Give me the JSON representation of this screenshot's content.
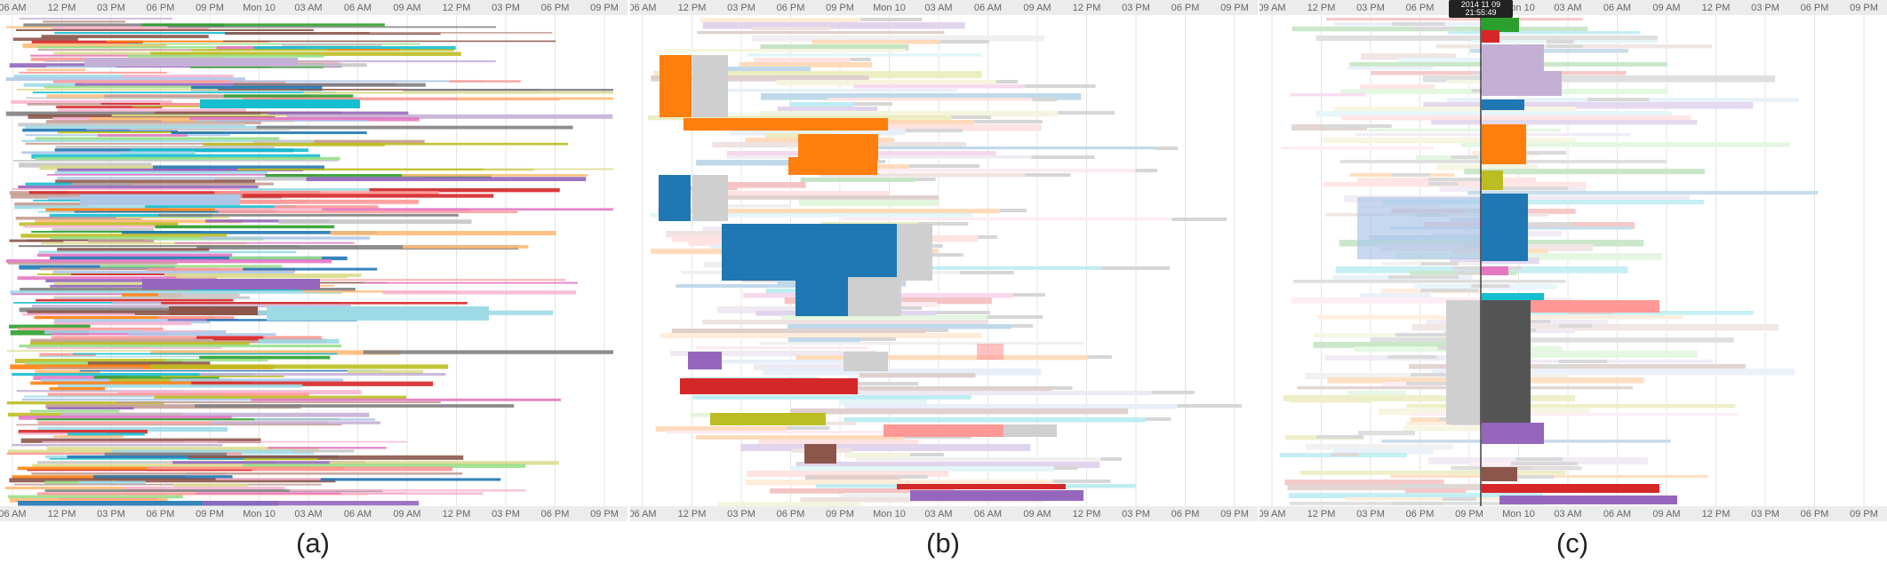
{
  "figure": {
    "captions": [
      "(a)",
      "(b)",
      "(c)"
    ]
  },
  "colors": {
    "palette": [
      "#1f77b4",
      "#ff7f0e",
      "#2ca02c",
      "#d62728",
      "#9467bd",
      "#8c564b",
      "#e377c2",
      "#7f7f7f",
      "#bcbd22",
      "#17becf",
      "#aec7e8",
      "#ffbb78",
      "#98df8a",
      "#ff9896",
      "#c5b0d5",
      "#c49c94",
      "#f7b6d2",
      "#c7c7c7",
      "#dbdb8d",
      "#9edae5"
    ],
    "muted": "#cccccc",
    "dark": "#555555",
    "axis_bg": "#ececec"
  },
  "chart_data": [
    {
      "type": "gantt",
      "panel": "(a)",
      "x_ticks_top": [
        "06 AM",
        "12 PM",
        "03 PM",
        "06 PM",
        "09 PM",
        "Mon 10",
        "03 AM",
        "06 AM",
        "09 AM",
        "12 PM",
        "03 PM",
        "06 PM",
        "09 PM"
      ],
      "x_ticks_bottom": [
        "06 AM",
        "12 PM",
        "03 PM",
        "06 PM",
        "09 PM",
        "Mon 10",
        "03 AM",
        "06 AM",
        "09 AM",
        "12 PM",
        "03 PM",
        "06 PM",
        "09 PM"
      ],
      "grid": true,
      "style": "dense overlapping colored bars, all series fully saturated"
    },
    {
      "type": "gantt",
      "panel": "(b)",
      "x_ticks_top": [
        "06 AM",
        "12 PM",
        "03 PM",
        "06 PM",
        "09 PM",
        "Mon 10",
        "03 AM",
        "06 AM",
        "09 AM",
        "12 PM",
        "03 PM",
        "06 PM",
        "09 PM"
      ],
      "x_ticks_bottom": [
        "06 AM",
        "12 PM",
        "03 PM",
        "06 PM",
        "09 PM",
        "Mon 10",
        "03 AM",
        "06 AM",
        "09 AM",
        "12 PM",
        "03 PM",
        "06 PM",
        "09 PM"
      ],
      "grid": true,
      "style": "overlapping bars with highlighted saturated blocks; others faded"
    },
    {
      "type": "gantt",
      "panel": "(c)",
      "x_ticks_top": [
        "09 AM",
        "12 PM",
        "03 PM",
        "06 PM",
        "09 PM",
        "Mon 10",
        "03 AM",
        "06 AM",
        "09 AM",
        "12 PM",
        "03 PM",
        "06 PM",
        "09 PM"
      ],
      "x_ticks_bottom": [
        "09 AM",
        "12 PM",
        "03 PM",
        "06 PM",
        "09 PM",
        "Mon 10",
        "03 AM",
        "06 AM",
        "09 AM",
        "12 PM",
        "03 PM",
        "06 PM",
        "09 PM"
      ],
      "grid": true,
      "cursor": {
        "label_line1": "2014 11 09",
        "label_line2": "21:55:49"
      },
      "style": "bars faded, cursor-intersecting blocks saturated"
    }
  ]
}
